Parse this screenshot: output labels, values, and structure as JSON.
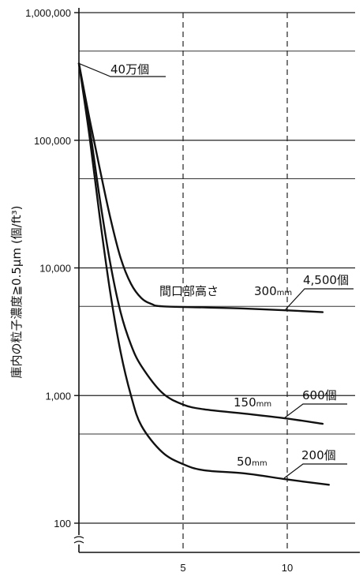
{
  "chart_data": {
    "type": "line",
    "title": "",
    "ylabel": "庫内の粒子濃度≧0.5μm (個/ft³)",
    "xlabel": "",
    "yscale": "log",
    "ylim": [
      100,
      1000000
    ],
    "xlim": [
      0,
      13
    ],
    "y_ticks": [
      {
        "value": 100,
        "label": "100"
      },
      {
        "value": 1000,
        "label": "1,000"
      },
      {
        "value": 10000,
        "label": "10,000"
      },
      {
        "value": 100000,
        "label": "100,000"
      },
      {
        "value": 1000000,
        "label": "1,000,000"
      }
    ],
    "x_ticks": [
      {
        "value": 5,
        "label": "5"
      },
      {
        "value": 10,
        "label": "10"
      }
    ],
    "initial_annotation": "40万個",
    "height_header": "間口部高さ",
    "series": [
      {
        "height_value": "300",
        "height_unit": "mm",
        "end_label": "4,500個",
        "points": [
          [
            0,
            400000
          ],
          [
            0.5,
            150000
          ],
          [
            1,
            60000
          ],
          [
            1.5,
            25000
          ],
          [
            2,
            12000
          ],
          [
            2.5,
            7500
          ],
          [
            3,
            5800
          ],
          [
            3.5,
            5200
          ],
          [
            4,
            5000
          ],
          [
            6,
            4900
          ],
          [
            8,
            4800
          ],
          [
            10,
            4650
          ],
          [
            11.7,
            4500
          ]
        ]
      },
      {
        "height_value": "150",
        "height_unit": "mm",
        "end_label": "600個",
        "points": [
          [
            0,
            400000
          ],
          [
            0.5,
            130000
          ],
          [
            1,
            35000
          ],
          [
            1.5,
            11000
          ],
          [
            2,
            4500
          ],
          [
            2.5,
            2500
          ],
          [
            3,
            1700
          ],
          [
            4,
            1050
          ],
          [
            5,
            850
          ],
          [
            6,
            780
          ],
          [
            8,
            720
          ],
          [
            10,
            660
          ],
          [
            11.7,
            600
          ]
        ]
      },
      {
        "height_value": "50",
        "height_unit": "mm",
        "end_label": "200個",
        "points": [
          [
            0,
            400000
          ],
          [
            0.5,
            110000
          ],
          [
            1,
            25000
          ],
          [
            1.5,
            6500
          ],
          [
            2,
            2200
          ],
          [
            2.5,
            1000
          ],
          [
            3,
            580
          ],
          [
            4,
            360
          ],
          [
            5,
            290
          ],
          [
            6,
            260
          ],
          [
            8,
            245
          ],
          [
            10,
            220
          ],
          [
            12,
            200
          ]
        ]
      }
    ]
  }
}
